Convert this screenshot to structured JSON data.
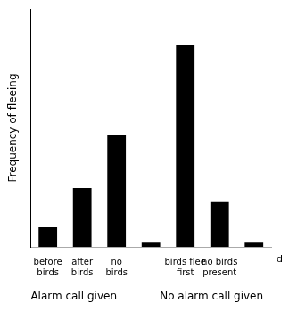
{
  "chart_data": {
    "type": "bar",
    "categories": [
      "before\nbirds",
      "after\nbirds",
      "no\nbirds",
      null,
      "birds flee\nfirst",
      "no birds\npresent",
      null
    ],
    "values": [
      0.07,
      0.21,
      0.4,
      0.015,
      0.72,
      0.16,
      0.015
    ],
    "color": "#000000",
    "ylabel": "Frequency of fleeing",
    "annotations": [
      "d",
      "Alarm call given",
      "No alarm call given"
    ],
    "ylim": [
      0,
      0.85
    ],
    "grid": false,
    "tick_labels": "x"
  }
}
